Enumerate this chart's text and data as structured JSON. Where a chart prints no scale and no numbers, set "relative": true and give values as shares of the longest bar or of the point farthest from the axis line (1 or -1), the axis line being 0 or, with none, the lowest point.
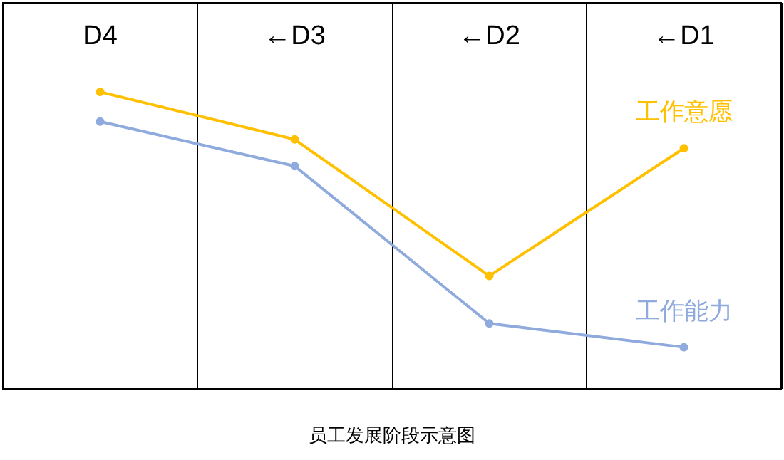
{
  "chart_data": {
    "type": "line",
    "title": "员工发展阶段示意图",
    "categories": [
      "D4",
      "←D3",
      "←D2",
      "←D1"
    ],
    "relative": true,
    "grid": "x",
    "marker": "circle",
    "legend": false,
    "series": [
      {
        "name": "工作意愿",
        "color": "#ffc000",
        "values": [
          1,
          0.84,
          0.38,
          0.81
        ]
      },
      {
        "name": "工作能力",
        "color": "#8faadc",
        "values": [
          0.9,
          0.75,
          0.22,
          0.14
        ]
      }
    ]
  }
}
